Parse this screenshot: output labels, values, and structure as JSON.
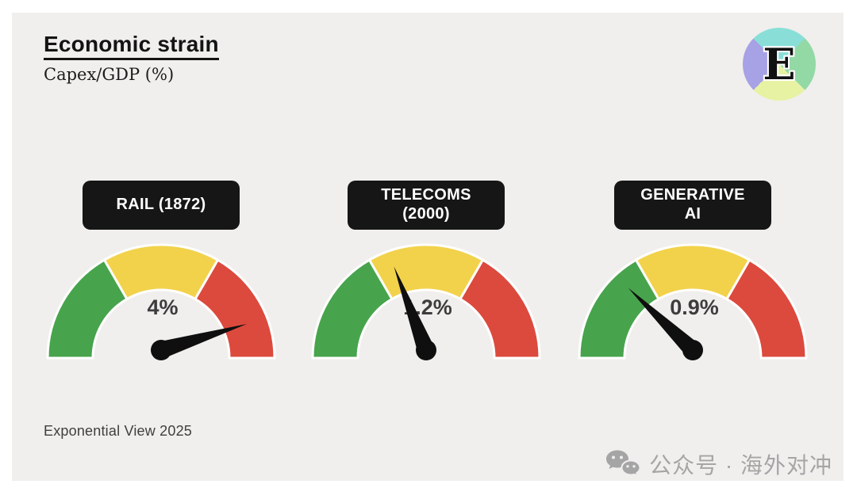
{
  "header": {
    "title": "Economic strain",
    "subtitle": "Capex/GDP (%)"
  },
  "logo": {
    "letter": "E",
    "quadrant_colors": {
      "top": "#89dfd8",
      "right": "#92d9a6",
      "bottom": "#e7f2a3",
      "left": "#a7a1e6"
    }
  },
  "footer": {
    "source": "Exponential View 2025"
  },
  "watermark": {
    "icon": "wechat-icon",
    "text": "公众号 · 海外对冲",
    "color": "#a5a5a5"
  },
  "chart_data": {
    "type": "gauge",
    "title": "Economic strain",
    "subtitle": "Capex/GDP (%)",
    "background": "#f0efed",
    "zone_colors": {
      "green": "#47a44c",
      "yellow": "#f2d24b",
      "red": "#dc4a3d"
    },
    "zone_arcs": [
      {
        "zone": "green",
        "start_deg": 180,
        "end_deg": 120
      },
      {
        "zone": "yellow",
        "start_deg": 120,
        "end_deg": 60
      },
      {
        "zone": "red",
        "start_deg": 60,
        "end_deg": 0
      }
    ],
    "gauges": [
      {
        "id": "rail-1872",
        "label_lines": [
          "RAIL (1872)"
        ],
        "value_label": "4%",
        "value_pct": 4,
        "needle_angle_deg": 17,
        "needle_zone": "red"
      },
      {
        "id": "telecoms-2000",
        "label_lines": [
          "TELECOMS",
          "(2000)"
        ],
        "value_label": "1.2%",
        "value_pct": 1.2,
        "needle_angle_deg": 111,
        "needle_zone": "yellow"
      },
      {
        "id": "generative-ai",
        "label_lines": [
          "GENERATIVE",
          "AI"
        ],
        "value_label": "0.9%",
        "value_pct": 0.9,
        "needle_angle_deg": 136,
        "needle_zone": "green"
      }
    ],
    "gauge_centers_x": [
      188,
      522,
      858
    ]
  }
}
